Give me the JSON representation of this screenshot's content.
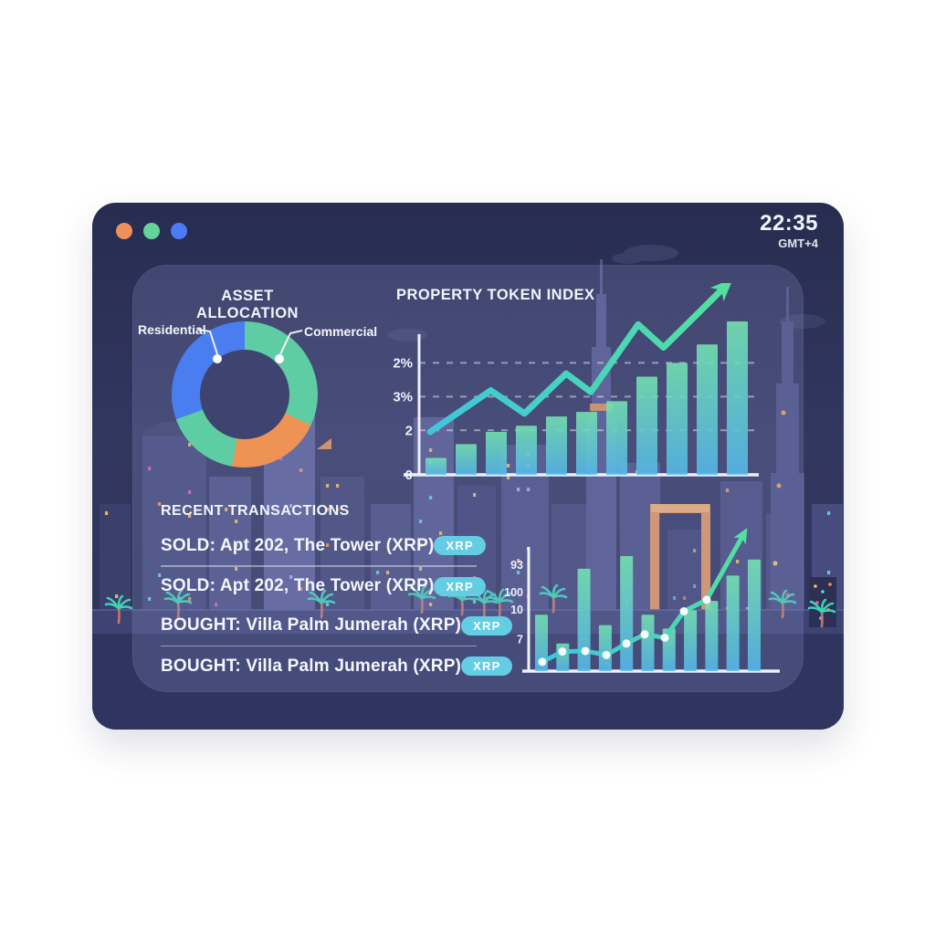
{
  "window": {
    "traffic_lights": [
      {
        "name": "close",
        "color": "#ef8f5a"
      },
      {
        "name": "minimize",
        "color": "#66d39b"
      },
      {
        "name": "maximize",
        "color": "#4b7cf3"
      }
    ],
    "clock": {
      "time": "22:35",
      "timezone": "GMT+4"
    }
  },
  "asset_allocation": {
    "title": "ASSET ALLOCATION",
    "callouts": [
      {
        "label": "Residential"
      },
      {
        "label": "Commercial"
      }
    ],
    "chart_data": {
      "type": "donut",
      "segments": [
        {
          "label": "Commercial",
          "color": "#5ecda4",
          "start_deg": 0,
          "end_deg": 115
        },
        {
          "label": "",
          "color": "#ef9355",
          "start_deg": 115,
          "end_deg": 190
        },
        {
          "label": "",
          "color": "#5ecda4",
          "start_deg": 190,
          "end_deg": 250
        },
        {
          "label": "Residential",
          "color": "#4a7df0",
          "start_deg": 250,
          "end_deg": 360
        }
      ],
      "hole_color": "#3e4370"
    }
  },
  "property_token_index": {
    "title": "PROPERTY TOKEN INDEX",
    "chart_data": {
      "type": "bar+line",
      "bars": [
        11,
        20,
        28,
        32,
        38,
        41,
        48,
        64,
        73,
        85,
        100
      ],
      "line": [
        [
          1.4,
          28
        ],
        [
          19.6,
          55
        ],
        [
          29.7,
          40
        ],
        [
          42.2,
          66
        ],
        [
          49.6,
          54
        ],
        [
          63.8,
          98
        ],
        [
          71.4,
          83
        ],
        [
          88.6,
          120
        ]
      ],
      "dots_on_line": 0,
      "yticks": [
        {
          "label": "2%",
          "pos": 73,
          "grid": true
        },
        {
          "label": "3%",
          "pos": 51,
          "grid": true
        },
        {
          "label": "2",
          "pos": 29,
          "grid": true
        },
        {
          "label": "0",
          "pos": 0,
          "grid": false
        }
      ],
      "bar_color_bottom": "#55b9ea",
      "bar_color_top": "#74e4b2",
      "line_color_start": "#3fc6dc",
      "line_color_end": "#52e0a0",
      "arrow": true
    }
  },
  "recent_transactions": {
    "title": "RECENT TRANSACTIONS",
    "badge_color": "#63cde4",
    "rows": [
      {
        "text": "SOLD: Apt 202, The Tower (XRP)",
        "badge": "XRP",
        "divider_after": true
      },
      {
        "text": "SOLD: Apt 202, The Tower (XRP)",
        "badge": "XRP",
        "divider_after": false
      },
      {
        "text": "BOUGHT: Villa Palm Jumerah (XRP)",
        "badge": "XRP",
        "divider_after": true
      },
      {
        "text": "BOUGHT: Villa Palm Jumerah (XRP)",
        "badge": "XRP",
        "divider_after": false
      }
    ]
  },
  "market_trend_chart": {
    "chart_data": {
      "type": "bar+line",
      "bars": [
        49,
        24,
        89,
        40,
        100,
        49,
        37,
        53,
        61,
        83,
        97
      ],
      "line": [
        [
          3.2,
          8
        ],
        [
          12.1,
          17
        ],
        [
          22.3,
          17.5
        ],
        [
          31.6,
          14
        ],
        [
          40.5,
          24
        ],
        [
          48.6,
          32
        ],
        [
          57.5,
          29
        ],
        [
          66,
          52
        ],
        [
          76.1,
          62
        ],
        [
          91.9,
          117
        ]
      ],
      "dots_on_line": 9,
      "yticks": [
        {
          "label": "93",
          "pos": 93,
          "grid": false
        },
        {
          "label": "100",
          "pos": 69,
          "grid": false
        },
        {
          "label": "10",
          "pos": 54,
          "grid": false
        },
        {
          "label": "7",
          "pos": 28,
          "grid": false
        }
      ],
      "bar_color_bottom": "#55b9ea",
      "bar_color_top": "#74e4b2",
      "line_color_start": "#3fc6dc",
      "line_color_end": "#52e0a0",
      "arrow": true
    }
  }
}
